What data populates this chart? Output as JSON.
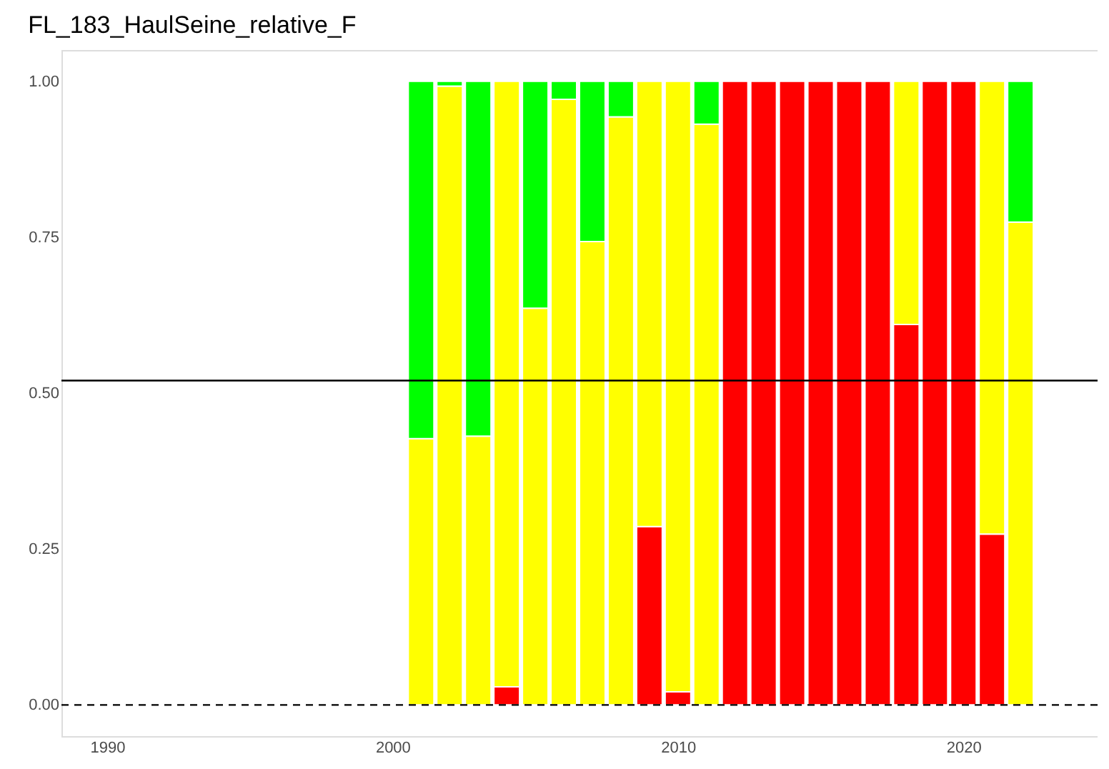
{
  "chart_data": {
    "type": "bar",
    "title": "FL_183_HaulSeine_relative_F",
    "stacked": true,
    "x": [
      2001,
      2002,
      2003,
      2004,
      2005,
      2006,
      2007,
      2008,
      2009,
      2010,
      2011,
      2012,
      2013,
      2014,
      2015,
      2016,
      2017,
      2018,
      2019,
      2020,
      2021,
      2022
    ],
    "series": [
      {
        "color": "#ff0000",
        "values": [
          null,
          null,
          null,
          0.029,
          null,
          null,
          null,
          null,
          0.286,
          0.021,
          null,
          1,
          1,
          1,
          1,
          1,
          1,
          0.61,
          1,
          1,
          0.274,
          null
        ]
      },
      {
        "color": "#ffff00",
        "values": [
          0.427,
          0.992,
          0.431,
          0.971,
          0.636,
          0.971,
          0.743,
          0.943,
          0.714,
          0.979,
          0.931,
          null,
          null,
          null,
          null,
          null,
          null,
          0.39,
          null,
          null,
          0.726,
          0.774
        ]
      },
      {
        "color": "#00ff00",
        "values": [
          0.573,
          0.008,
          0.569,
          null,
          0.364,
          0.029,
          0.257,
          0.057,
          null,
          null,
          0.069,
          null,
          null,
          null,
          null,
          null,
          null,
          null,
          null,
          null,
          null,
          0.226
        ]
      }
    ],
    "xlim": [
      1988.4,
      2024.7
    ],
    "xticks": [
      1990,
      2000,
      2010,
      2020
    ],
    "ylim": [
      -0.05,
      1.05
    ],
    "yticks": [
      {
        "value": 0,
        "label": "0.00"
      },
      {
        "value": 0.25,
        "label": "0.25"
      },
      {
        "value": 0.5,
        "label": "0.50"
      },
      {
        "value": 0.75,
        "label": "0.75"
      },
      {
        "value": 1,
        "label": "1.00"
      }
    ],
    "ref_lines": [
      {
        "axis": "y",
        "value": 0.52,
        "color": "#000000",
        "line_style": "solid"
      },
      {
        "axis": "y",
        "value": 0,
        "color": "#000000",
        "line_style": "dashed"
      }
    ],
    "grid": false
  }
}
